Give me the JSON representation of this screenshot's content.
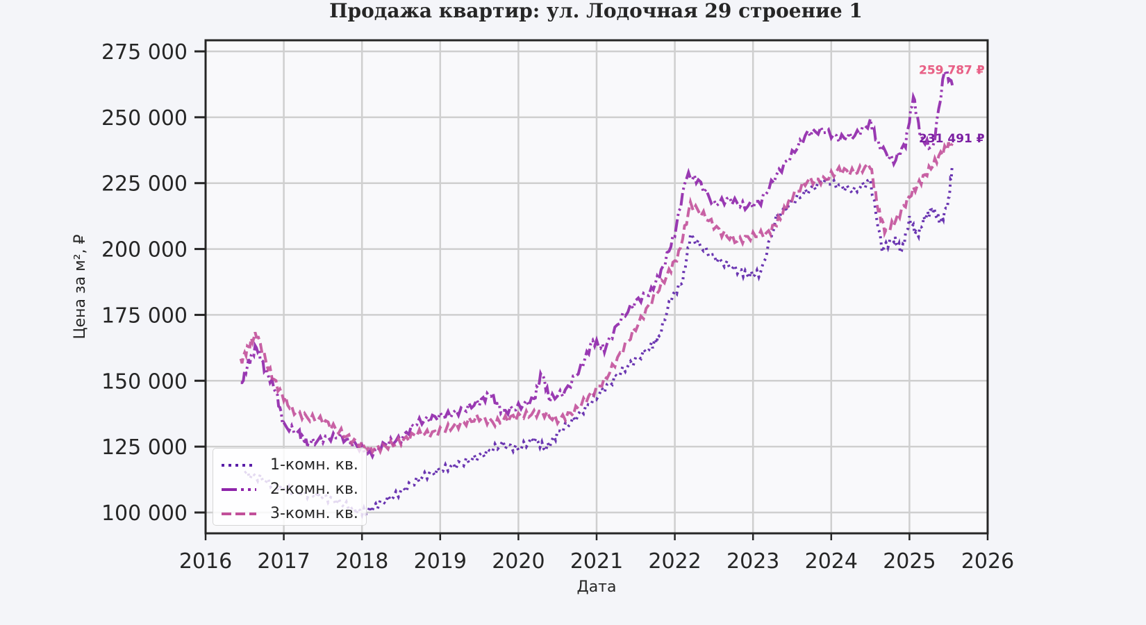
{
  "title": "Продажа квартир: ул. Лодочная 29 строение 1",
  "axes": {
    "xlabel": "Дата",
    "ylabel": "Цена за м², ₽",
    "xticks": [
      "2016",
      "2017",
      "2018",
      "2019",
      "2020",
      "2021",
      "2022",
      "2023",
      "2024",
      "2025",
      "2026"
    ],
    "yticks": [
      "100 000",
      "125 000",
      "150 000",
      "175 000",
      "200 000",
      "225 000",
      "250 000",
      "275 000"
    ]
  },
  "legend": {
    "items": [
      {
        "label": "1-комн. кв.",
        "color": "#5a1fa8",
        "style": "dotted"
      },
      {
        "label": "2-комн. кв.",
        "color": "#8e24aa",
        "style": "dashdot"
      },
      {
        "label": "3-комн. кв.",
        "color": "#c2509a",
        "style": "dashed"
      }
    ]
  },
  "annotations": [
    {
      "text": "259 787 ₽",
      "color": "#f08a3c",
      "y": 268000
    },
    {
      "text": "259 787 ₽",
      "color": "#e8608a",
      "y": 268000
    },
    {
      "text": "231 491 ₽",
      "color": "#7b1fa2",
      "y": 242000
    }
  ],
  "chart_data": {
    "type": "line",
    "title": "Продажа квартир: ул. Лодочная 29 строение 1",
    "xlabel": "Дата",
    "ylabel": "Цена за м², ₽",
    "xlim": [
      2016,
      2026
    ],
    "ylim": [
      92000,
      277000
    ],
    "grid": true,
    "legend_position": "lower left",
    "series": [
      {
        "name": "1-комн. кв.",
        "color": "#5a1fa8",
        "linestyle": "dotted",
        "x": [
          2016.5,
          2016.7,
          2016.9,
          2017.1,
          2017.3,
          2017.5,
          2017.7,
          2017.9,
          2018.05,
          2018.2,
          2018.4,
          2018.6,
          2018.8,
          2019.0,
          2019.2,
          2019.4,
          2019.6,
          2019.8,
          2020.0,
          2020.2,
          2020.35,
          2020.5,
          2020.7,
          2020.9,
          2021.1,
          2021.3,
          2021.5,
          2021.7,
          2021.8,
          2021.95,
          2022.1,
          2022.2,
          2022.4,
          2022.6,
          2022.8,
          2022.95,
          2023.1,
          2023.3,
          2023.5,
          2023.7,
          2023.9,
          2024.1,
          2024.3,
          2024.5,
          2024.65,
          2024.8,
          2024.9,
          2025.0,
          2025.1,
          2025.2,
          2025.3,
          2025.4,
          2025.5,
          2025.55
        ],
        "values": [
          115000,
          113000,
          110000,
          108000,
          107000,
          106000,
          104000,
          101000,
          100000,
          103000,
          106000,
          110000,
          114000,
          116000,
          118000,
          120000,
          123000,
          126000,
          124000,
          128000,
          124000,
          130000,
          135000,
          141000,
          147000,
          153000,
          158000,
          163000,
          167000,
          181000,
          188000,
          205000,
          199000,
          195000,
          192000,
          190000,
          191000,
          212000,
          218000,
          222000,
          226000,
          224000,
          222000,
          226000,
          200000,
          204000,
          199000,
          211000,
          205000,
          212000,
          215000,
          210000,
          218000,
          232000
        ]
      },
      {
        "name": "2-комн. кв.",
        "color": "#8e24aa",
        "linestyle": "dashdot",
        "x": [
          2016.45,
          2016.55,
          2016.65,
          2016.75,
          2016.9,
          2017.0,
          2017.2,
          2017.3,
          2017.5,
          2017.7,
          2017.9,
          2018.1,
          2018.3,
          2018.5,
          2018.7,
          2018.9,
          2019.1,
          2019.3,
          2019.5,
          2019.65,
          2019.8,
          2020.0,
          2020.2,
          2020.3,
          2020.4,
          2020.6,
          2020.8,
          2020.95,
          2021.1,
          2021.3,
          2021.5,
          2021.7,
          2021.85,
          2022.0,
          2022.15,
          2022.3,
          2022.5,
          2022.7,
          2022.9,
          2023.1,
          2023.3,
          2023.5,
          2023.7,
          2023.9,
          2024.1,
          2024.3,
          2024.5,
          2024.6,
          2024.8,
          2024.95,
          2025.05,
          2025.15,
          2025.3,
          2025.45,
          2025.55
        ],
        "values": [
          148000,
          157000,
          163000,
          155000,
          146000,
          133000,
          130000,
          126000,
          128000,
          129000,
          126000,
          122000,
          126000,
          128000,
          134000,
          136000,
          137000,
          139000,
          142000,
          145000,
          138000,
          140000,
          143000,
          153000,
          143000,
          146000,
          155000,
          165000,
          162000,
          173000,
          180000,
          184000,
          193000,
          206000,
          228000,
          226000,
          217000,
          219000,
          216000,
          218000,
          228000,
          236000,
          244000,
          245000,
          242000,
          243000,
          248000,
          240000,
          233000,
          240000,
          258000,
          242000,
          238000,
          268000,
          262000
        ]
      },
      {
        "name": "3-комн. кв.",
        "color": "#c2509a",
        "linestyle": "dashed",
        "x": [
          2016.45,
          2016.55,
          2016.65,
          2016.8,
          2016.95,
          2017.1,
          2017.3,
          2017.5,
          2017.7,
          2017.9,
          2018.1,
          2018.3,
          2018.5,
          2018.7,
          2018.9,
          2019.1,
          2019.3,
          2019.5,
          2019.7,
          2019.9,
          2020.1,
          2020.3,
          2020.5,
          2020.7,
          2020.9,
          2021.1,
          2021.3,
          2021.5,
          2021.7,
          2021.9,
          2022.05,
          2022.2,
          2022.4,
          2022.6,
          2022.8,
          2023.0,
          2023.2,
          2023.35,
          2023.5,
          2023.7,
          2023.9,
          2024.1,
          2024.3,
          2024.5,
          2024.6,
          2024.7,
          2024.85,
          2025.0,
          2025.15,
          2025.3,
          2025.45,
          2025.55
        ],
        "values": [
          157000,
          163000,
          168000,
          155000,
          146000,
          139000,
          136000,
          135000,
          131000,
          127000,
          124000,
          125000,
          127000,
          130000,
          130000,
          132000,
          134000,
          136000,
          134000,
          136000,
          137000,
          138000,
          135000,
          138000,
          144000,
          150000,
          160000,
          170000,
          180000,
          190000,
          198000,
          217000,
          212000,
          206000,
          203000,
          205000,
          206000,
          212000,
          220000,
          226000,
          226000,
          230000,
          229000,
          232000,
          215000,
          206000,
          212000,
          220000,
          226000,
          232000,
          238000,
          240000
        ]
      }
    ],
    "annotations": [
      {
        "text": "259 787 ₽",
        "x": 2025.55,
        "y": 268000
      },
      {
        "text": "231 491 ₽",
        "x": 2025.55,
        "y": 242000
      }
    ]
  }
}
